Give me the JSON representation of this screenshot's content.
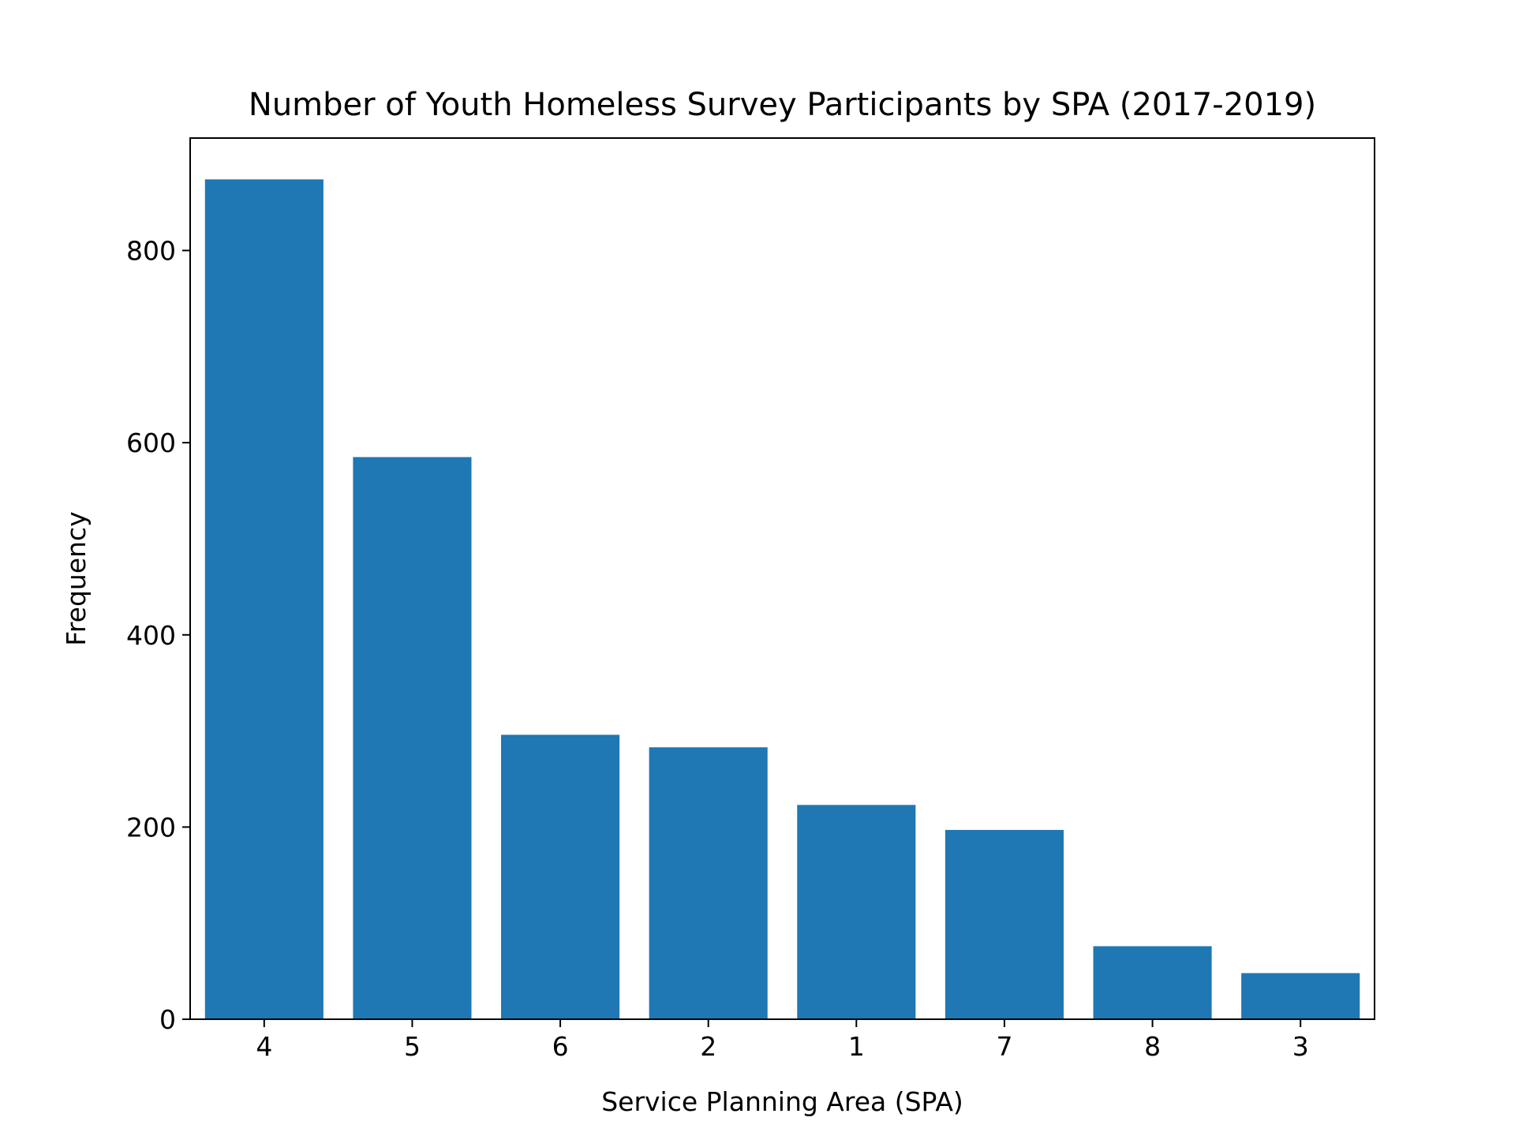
{
  "chart_data": {
    "type": "bar",
    "title": "Number of Youth Homeless Survey Participants by SPA (2017-2019)",
    "xlabel": "Service Planning Area (SPA)",
    "ylabel": "Frequency",
    "categories": [
      "4",
      "5",
      "6",
      "2",
      "1",
      "7",
      "8",
      "3"
    ],
    "values": [
      874,
      585,
      296,
      283,
      223,
      197,
      76,
      48
    ],
    "ylim": [
      0,
      917
    ],
    "yticks": [
      0,
      200,
      400,
      600,
      800
    ],
    "grid": false,
    "legend": "none",
    "bar_color": "#1f77b4"
  }
}
